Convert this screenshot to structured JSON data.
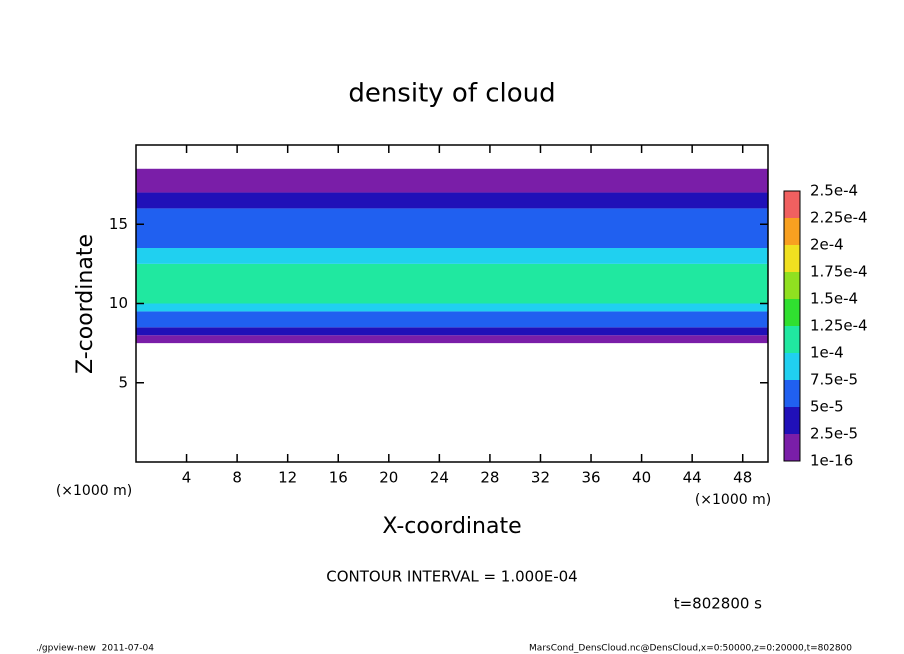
{
  "chart_data": {
    "type": "band-profile",
    "title": "density of cloud",
    "x_label": "X-coordinate",
    "y_label": "Z-coordinate",
    "x_unit_label": "(×1000 m)",
    "xlim": [
      0,
      50
    ],
    "xticks": [
      4,
      8,
      12,
      16,
      20,
      24,
      28,
      32,
      36,
      40,
      44,
      48
    ],
    "ylim": [
      0,
      20
    ],
    "yticks": [
      5,
      10,
      15
    ],
    "z_edges": [
      7.5,
      8,
      8.5,
      9.5,
      10,
      12.5,
      13.5,
      16,
      17,
      18.5
    ],
    "values": [
      1e-05,
      3e-05,
      5e-05,
      8e-05,
      0.00011,
      8e-05,
      5e-05,
      3e-05,
      1e-05
    ],
    "colorbar": {
      "ticks": [
        {
          "value": 1e-16,
          "label": "1e-16"
        },
        {
          "value": 2.5e-05,
          "label": "2.5e-5"
        },
        {
          "value": 5e-05,
          "label": "5e-5"
        },
        {
          "value": 7.5e-05,
          "label": "7.5e-5"
        },
        {
          "value": 0.0001,
          "label": "1e-4"
        },
        {
          "value": 0.000125,
          "label": "1.25e-4"
        },
        {
          "value": 0.00015,
          "label": "1.5e-4"
        },
        {
          "value": 0.000175,
          "label": "1.75e-4"
        },
        {
          "value": 0.0002,
          "label": "2e-4"
        },
        {
          "value": 0.000225,
          "label": "2.25e-4"
        },
        {
          "value": 0.00025,
          "label": "2.5e-4"
        }
      ],
      "colors": [
        "#7a1ea8",
        "#2010b8",
        "#2060f0",
        "#20d0f0",
        "#20e8a0",
        "#30e030",
        "#90e020",
        "#f0e020",
        "#f8a020",
        "#f06060"
      ]
    },
    "contour_label": "CONTOUR INTERVAL = 1.000E-04",
    "time_label": "t=802800 s",
    "footer_left": "./gpview-new  2011-07-04",
    "footer_right": "MarsCond_DensCloud.nc@DensCloud,x=0:50000,z=0:20000,t=802800"
  }
}
